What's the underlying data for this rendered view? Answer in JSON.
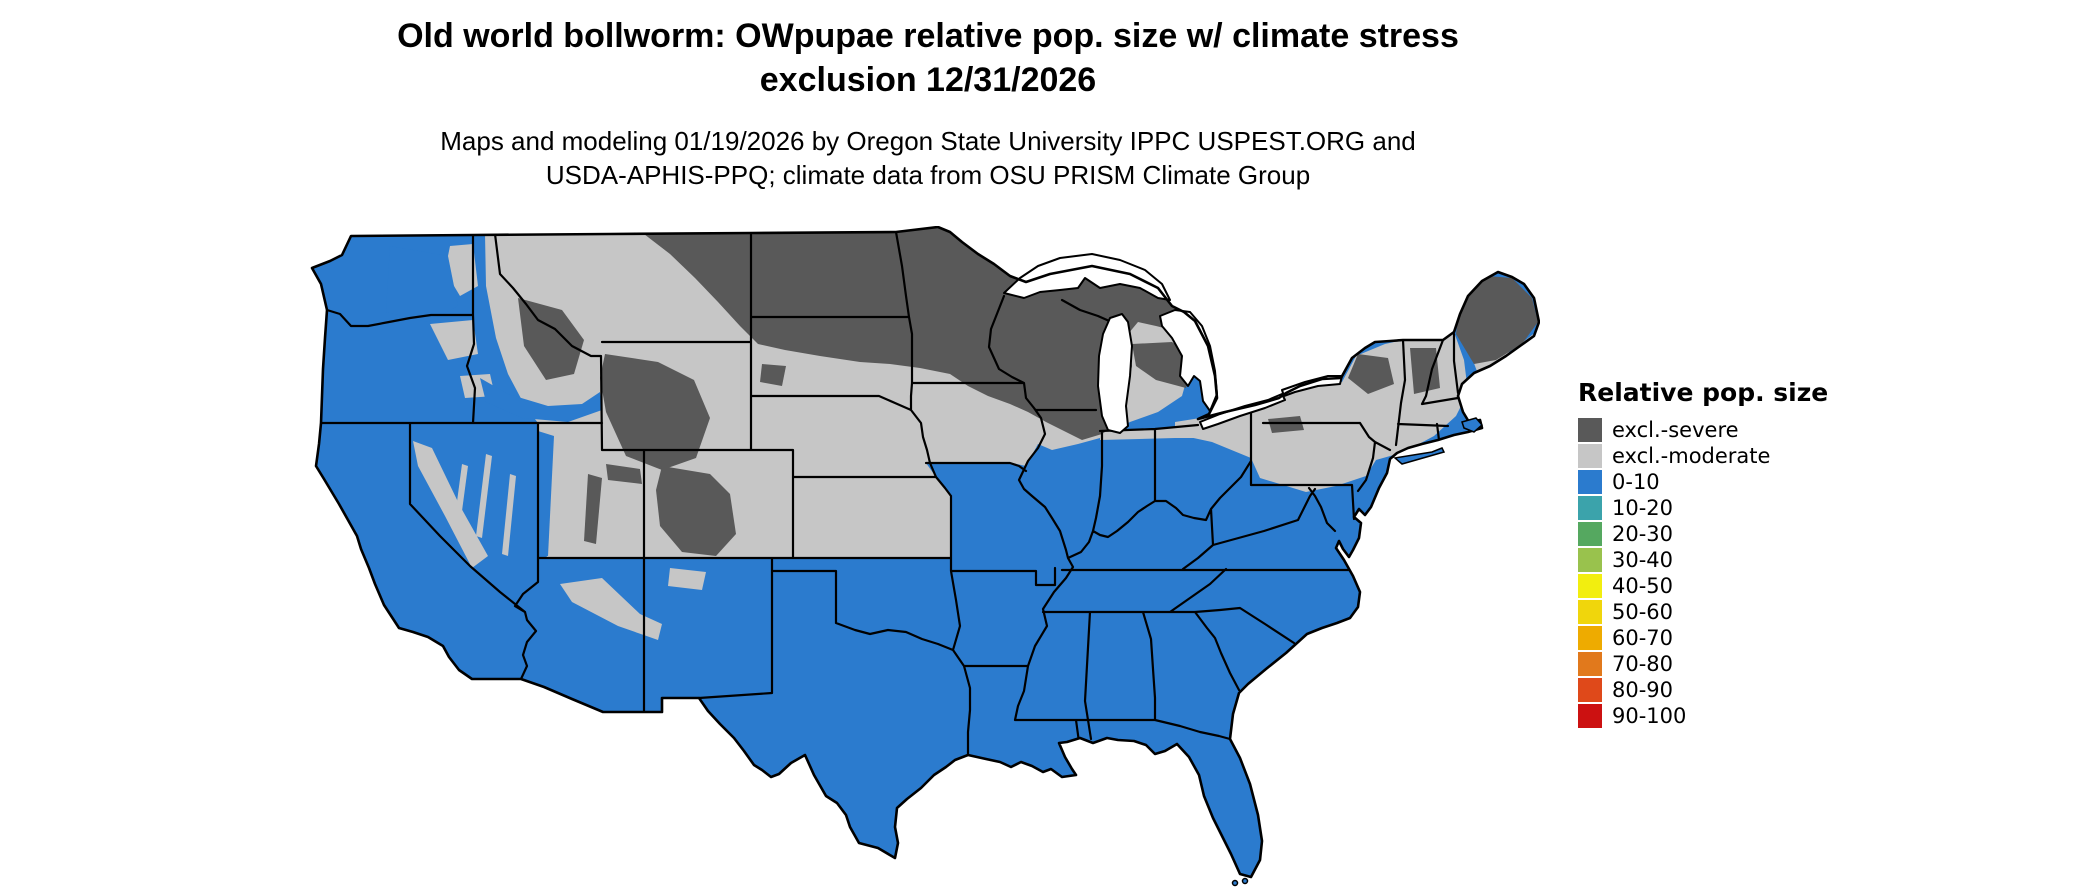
{
  "title": {
    "line1": "Old world bollworm: OWpupae relative pop. size w/ climate stress",
    "line2": "exclusion 12/31/2026"
  },
  "subtitle": {
    "line1": "Maps and modeling 01/19/2026 by Oregon State University IPPC USPEST.ORG and",
    "line2": "USDA-APHIS-PPQ; climate data from OSU PRISM Climate Group"
  },
  "legend": {
    "title": "Relative pop. size",
    "items": [
      {
        "label": "excl.-severe",
        "color": "#595959"
      },
      {
        "label": "excl.-moderate",
        "color": "#c6c6c6"
      },
      {
        "label": "0-10",
        "color": "#2b7bce"
      },
      {
        "label": "10-20",
        "color": "#3ba3ab"
      },
      {
        "label": "20-30",
        "color": "#55a860"
      },
      {
        "label": "30-40",
        "color": "#99c24d"
      },
      {
        "label": "40-50",
        "color": "#f2ee0f"
      },
      {
        "label": "50-60",
        "color": "#f0d60c"
      },
      {
        "label": "60-70",
        "color": "#eeab00"
      },
      {
        "label": "70-80",
        "color": "#e1791c"
      },
      {
        "label": "80-90",
        "color": "#df491a"
      },
      {
        "label": "90-100",
        "color": "#cc1111"
      }
    ]
  },
  "map": {
    "region": "Contiguous United States",
    "background_color": "#ffffff",
    "border_color": "#000000",
    "dominant_classes": [
      "0-10",
      "excl.-moderate",
      "excl.-severe"
    ]
  }
}
